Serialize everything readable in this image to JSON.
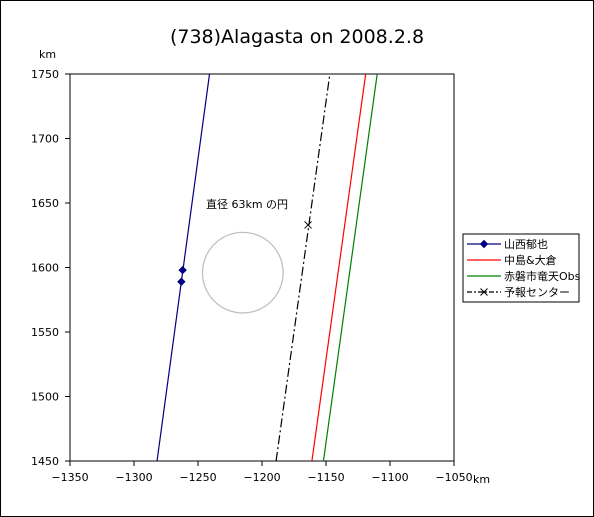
{
  "chart_data": {
    "type": "line",
    "title": "(738)Alagasta on 2008.2.8",
    "xlabel": "km",
    "ylabel": "km",
    "xlim": [
      -1350,
      -1050
    ],
    "ylim": [
      1450,
      1750
    ],
    "xticks": [
      -1350,
      -1300,
      -1250,
      -1200,
      -1150,
      -1100,
      -1050
    ],
    "yticks": [
      1450,
      1500,
      1550,
      1600,
      1650,
      1700,
      1750
    ],
    "xtick_labels": [
      "−1350",
      "−1300",
      "−1250",
      "−1200",
      "−1150",
      "−1100",
      "−1050"
    ],
    "ytick_labels": [
      "1450",
      "1500",
      "1550",
      "1600",
      "1650",
      "1700",
      "1750"
    ],
    "grid": false,
    "legend_position": "right",
    "series": [
      {
        "name": "山西郁也",
        "color": "#000080",
        "style": "solid",
        "marker": "diamond",
        "x": [
          -1282,
          -1241
        ],
        "y": [
          1450,
          1750
        ],
        "marker_points": [
          [
            -1262,
            1598
          ],
          [
            -1263,
            1589
          ]
        ]
      },
      {
        "name": "中島&大倉",
        "color": "#ff0000",
        "style": "solid",
        "marker": "none",
        "x": [
          -1161,
          -1119
        ],
        "y": [
          1450,
          1750
        ]
      },
      {
        "name": "赤磐市竜天Obs",
        "color": "#008000",
        "style": "solid",
        "marker": "none",
        "x": [
          -1152,
          -1110
        ],
        "y": [
          1450,
          1750
        ]
      },
      {
        "name": "予報センター",
        "color": "#000000",
        "style": "dashdot",
        "marker": "x",
        "x": [
          -1189,
          -1147
        ],
        "y": [
          1450,
          1750
        ],
        "marker_points": [
          [
            -1164,
            1633
          ]
        ]
      }
    ],
    "circle": {
      "label": "直径 63km の円",
      "center": [
        -1215,
        1596
      ],
      "diameter": 63,
      "color": "#c0c0c0"
    }
  }
}
